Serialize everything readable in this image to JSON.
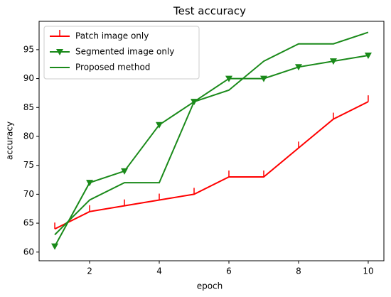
{
  "chart_data": {
    "type": "line",
    "title": "Test accuracy",
    "xlabel": "epoch",
    "ylabel": "accuracy",
    "x": [
      1,
      2,
      3,
      4,
      5,
      6,
      7,
      8,
      9,
      10
    ],
    "series": [
      {
        "name": "Patch image only",
        "color": "#ff0000",
        "marker": "vline",
        "values": [
          64,
          67,
          68,
          69,
          70,
          73,
          73,
          78,
          83,
          86
        ]
      },
      {
        "name": "Segmented image only",
        "color": "#1a8a1a",
        "marker": "triangle-down",
        "values": [
          61,
          72,
          74,
          82,
          86,
          90,
          90,
          92,
          93,
          94
        ]
      },
      {
        "name": "Proposed method",
        "color": "#1a8a1a",
        "marker": "none",
        "values": [
          63,
          69,
          72,
          72,
          86,
          88,
          93,
          96,
          96,
          98
        ]
      }
    ],
    "xlim": [
      0.55,
      10.45
    ],
    "ylim": [
      58.5,
      99.9
    ],
    "xticks": [
      2,
      4,
      6,
      8,
      10
    ],
    "yticks": [
      60,
      65,
      70,
      75,
      80,
      85,
      90,
      95
    ],
    "legend": "upper left"
  }
}
